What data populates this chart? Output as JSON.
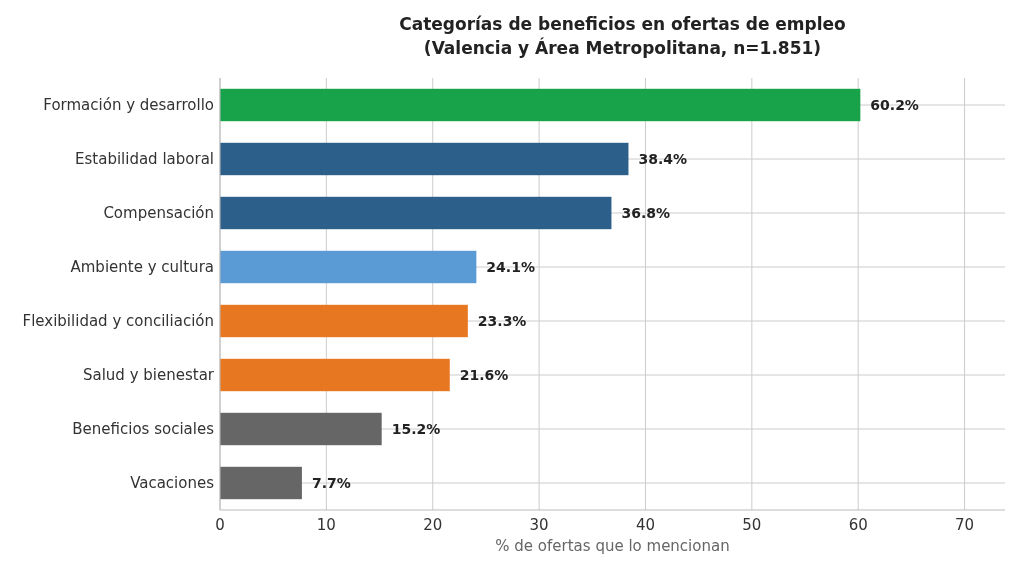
{
  "chart_data": {
    "type": "bar",
    "orientation": "horizontal",
    "title": "Categorías de beneficios en ofertas de empleo\n(Valencia y Área Metropolitana, n=1.851)",
    "xlabel": "% de ofertas que lo mencionan",
    "categories": [
      "Formación y desarrollo",
      "Estabilidad laboral",
      "Compensación",
      "Ambiente y cultura",
      "Flexibilidad y conciliación",
      "Salud y bienestar",
      "Beneficios sociales",
      "Vacaciones"
    ],
    "values": [
      60.2,
      38.4,
      36.8,
      24.1,
      23.3,
      21.6,
      15.2,
      7.7
    ],
    "colors": [
      "#18a34a",
      "#2c5f8a",
      "#2c5f8a",
      "#5b9bd5",
      "#e87722",
      "#e87722",
      "#666666",
      "#666666"
    ],
    "value_labels": [
      "60.2%",
      "38.4%",
      "36.8%",
      "24.1%",
      "23.3%",
      "21.6%",
      "15.2%",
      "7.7%"
    ],
    "xlim": [
      0,
      73.8
    ],
    "xticks": [
      0,
      10,
      20,
      30,
      40,
      50,
      60,
      70
    ],
    "grid": true
  }
}
